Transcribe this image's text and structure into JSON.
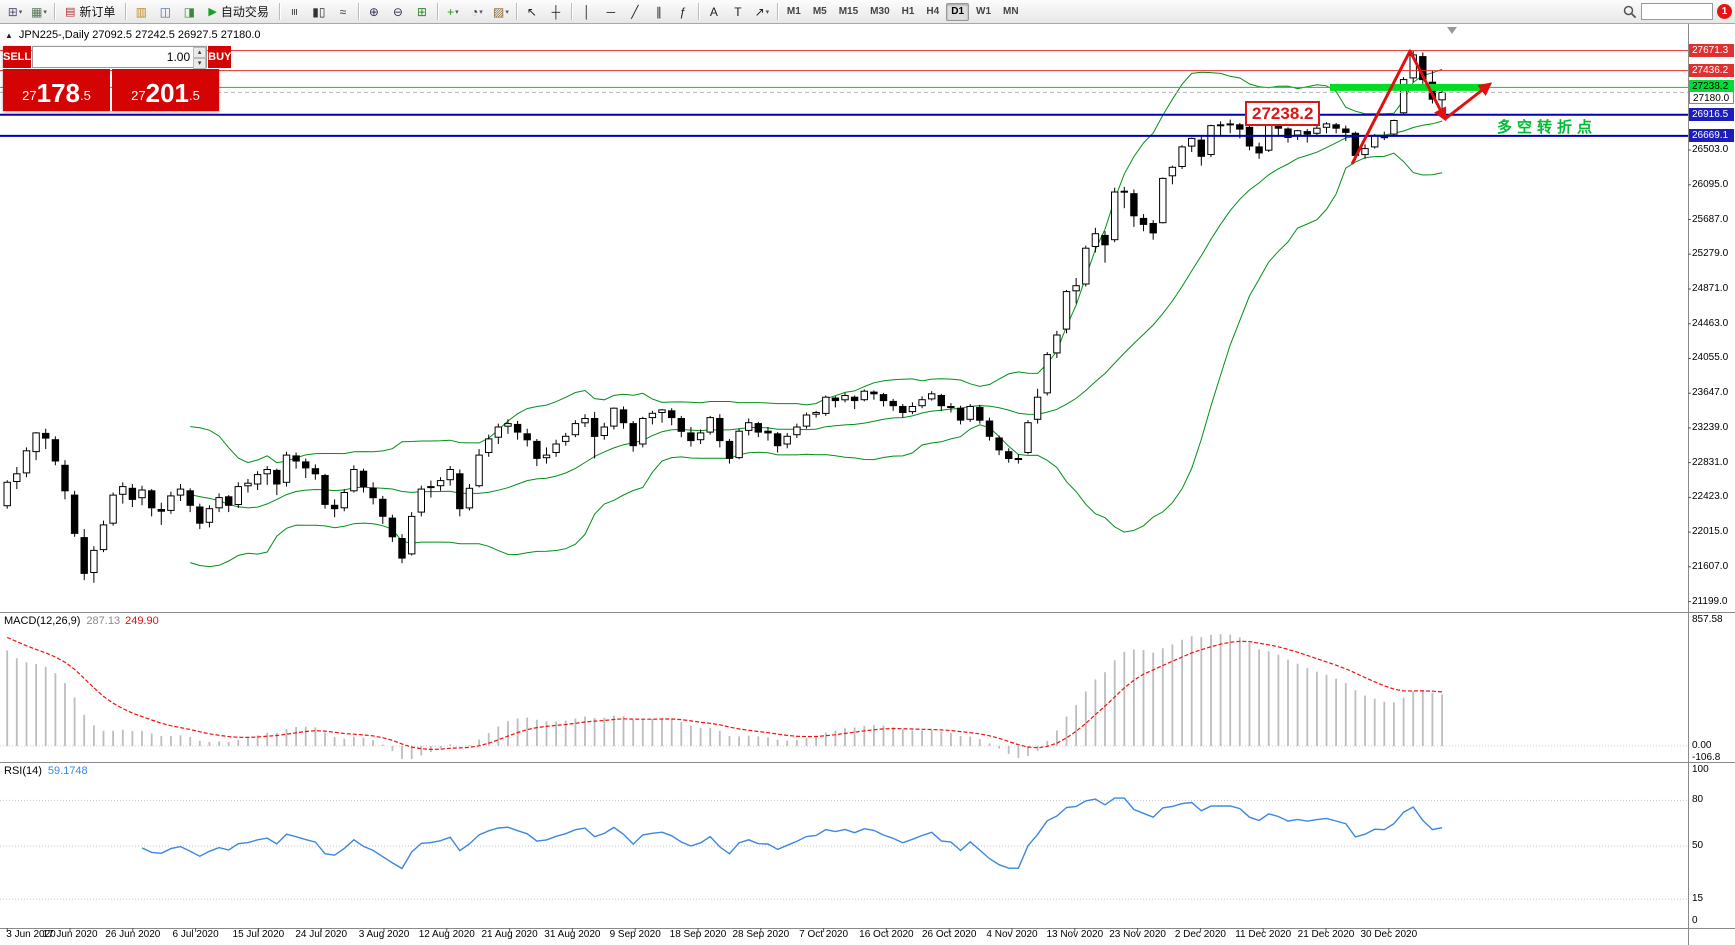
{
  "toolbar": {
    "search_placeholder": "",
    "notification_badge": "1",
    "caret_glyph": "▾",
    "timeframes": [
      "M1",
      "M5",
      "M15",
      "M30",
      "H1",
      "H4",
      "D1",
      "W1",
      "MN"
    ],
    "active_timeframe": "D1",
    "items": [
      {
        "t": "icon",
        "name": "new-chart-icon",
        "g": "⊞",
        "c": "#555577",
        "caret": true
      },
      {
        "t": "icon",
        "name": "profiles-icon",
        "g": "▦",
        "c": "#557755",
        "caret": true
      },
      {
        "t": "sep"
      },
      {
        "t": "button",
        "name": "new-order-button",
        "g": "▤",
        "c": "#b03030",
        "label": "新订单"
      },
      {
        "t": "sep"
      },
      {
        "t": "icon",
        "name": "market-watch-icon",
        "g": "▥",
        "c": "#c08820"
      },
      {
        "t": "icon",
        "name": "data-window-icon",
        "g": "◫",
        "c": "#4466aa"
      },
      {
        "t": "icon",
        "name": "strategy-tester-icon",
        "g": "◨",
        "c": "#3a8a3a"
      },
      {
        "t": "button",
        "name": "auto-trading-button",
        "g": "▶",
        "c": "#18a018",
        "label": "自动交易"
      },
      {
        "t": "sep"
      },
      {
        "t": "icon",
        "name": "bar-chart-type-icon",
        "g": "≡",
        "c": "#333333",
        "rot": true
      },
      {
        "t": "icon",
        "name": "candlestick-chart-type-icon",
        "g": "▮▯",
        "c": "#333333"
      },
      {
        "t": "icon",
        "name": "line-chart-type-icon",
        "g": "≈",
        "c": "#333333"
      },
      {
        "t": "sep"
      },
      {
        "t": "icon",
        "name": "zoom-in-icon",
        "g": "⊕",
        "c": "#333355"
      },
      {
        "t": "icon",
        "name": "zoom-out-icon",
        "g": "⊖",
        "c": "#333355"
      },
      {
        "t": "icon",
        "name": "tile-windows-icon",
        "g": "⊞",
        "c": "#2a8a2a"
      },
      {
        "t": "sep"
      },
      {
        "t": "icon",
        "name": "indicators-icon",
        "g": "+",
        "c": "#18a018",
        "caret": true
      },
      {
        "t": "icon",
        "name": "periods-icon",
        "g": "◔",
        "c": "#333333",
        "caret": true
      },
      {
        "t": "icon",
        "name": "templates-icon",
        "g": "▨",
        "c": "#886633",
        "caret": true
      },
      {
        "t": "sep"
      },
      {
        "t": "icon",
        "name": "cursor-icon",
        "g": "↖",
        "c": "#222222"
      },
      {
        "t": "icon",
        "name": "crosshair-icon",
        "g": "┼",
        "c": "#222222"
      },
      {
        "t": "sep"
      },
      {
        "t": "icon",
        "name": "vertical-line-icon",
        "g": "│",
        "c": "#222222"
      },
      {
        "t": "icon",
        "name": "horizontal-line-icon",
        "g": "─",
        "c": "#222222"
      },
      {
        "t": "icon",
        "name": "trendline-icon",
        "g": "╱",
        "c": "#222222"
      },
      {
        "t": "icon",
        "name": "equidistant-channel-icon",
        "g": "∥",
        "c": "#222222"
      },
      {
        "t": "icon",
        "name": "fibonacci-icon",
        "g": "ƒ",
        "c": "#222222"
      },
      {
        "t": "sep"
      },
      {
        "t": "icon",
        "name": "text-icon",
        "g": "A",
        "c": "#222222"
      },
      {
        "t": "icon",
        "name": "label-icon",
        "g": "T",
        "c": "#222222"
      },
      {
        "t": "icon",
        "name": "arrows-icon",
        "g": "↗",
        "c": "#222222",
        "caret": true
      },
      {
        "t": "sep"
      }
    ]
  },
  "chart": {
    "title": "JPN225-,Daily 27092.5 27242.5 26927.5 27180.0",
    "collapse_icon": "▲"
  },
  "trade_panel": {
    "sell_label": "SELL",
    "buy_label": "BUY",
    "volume": "1.00",
    "spin_up": "▴",
    "spin_down": "▾",
    "sell_price": "27178.5",
    "buy_price": "27201.5"
  },
  "annotations": {
    "pivot_price_label": "27238.2",
    "pivot_note": "多空转折点"
  },
  "chart_data": {
    "type": "candlestick",
    "symbol": "JPN225-",
    "timeframe": "Daily",
    "current_ohlc": {
      "open": 27092.5,
      "high": 27242.5,
      "low": 26927.5,
      "close": 27180.0
    },
    "ylim": [
      21100,
      27960
    ],
    "y_ticks": [
      "26503.0",
      "26095.0",
      "25687.0",
      "25279.0",
      "24871.0",
      "24463.0",
      "24055.0",
      "23647.0",
      "23239.0",
      "22831.0",
      "22423.0",
      "22015.0",
      "21607.0",
      "21199.0"
    ],
    "x_labels": [
      "3 Jun 2020",
      "17 Jun 2020",
      "26 Jun 2020",
      "6 Jul 2020",
      "15 Jul 2020",
      "24 Jul 2020",
      "3 Aug 2020",
      "12 Aug 2020",
      "21 Aug 2020",
      "31 Aug 2020",
      "9 Sep 2020",
      "18 Sep 2020",
      "28 Sep 2020",
      "7 Oct 2020",
      "16 Oct 2020",
      "26 Oct 2020",
      "4 Nov 2020",
      "13 Nov 2020",
      "23 Nov 2020",
      "2 Dec 2020",
      "11 Dec 2020",
      "21 Dec 2020",
      "30 Dec 2020"
    ],
    "overlays": {
      "bollinger_bands": {
        "period": 20,
        "deviation": 2,
        "color": "#009018"
      },
      "green_zone_price": 27238.2,
      "horizontal_levels": [
        {
          "label": "27671.3",
          "price": 27671.3,
          "style": "red",
          "bg": "#e03030",
          "fg": "#ffffff",
          "dy": 0
        },
        {
          "label": "27436.2",
          "price": 27436.2,
          "style": "red",
          "bg": "#e03030",
          "fg": "#ffffff",
          "dy": 0
        },
        {
          "label": "27238.2",
          "price": 27238.2,
          "style": "green",
          "bg": "#00dd32",
          "fg": "#000000",
          "dy": 0
        },
        {
          "label": "27180.0",
          "price": 27180.0,
          "style": "last",
          "bg": "#ffffff",
          "fg": "#000000",
          "dy": 6
        },
        {
          "label": "26916.5",
          "price": 26916.5,
          "style": "blue",
          "bg": "#1d1dbb",
          "fg": "#ffffff",
          "dy": 0
        },
        {
          "label": "26669.1",
          "price": 26669.1,
          "style": "blue",
          "bg": "#1d1dbb",
          "fg": "#ffffff",
          "dy": 0
        }
      ]
    },
    "indicator_panes": [
      {
        "name": "MACD",
        "label": "MACD(12,26,9)",
        "value_main": "287.13",
        "value_signal": "249.90",
        "scale": [
          "857.58",
          "0.00",
          "-106.8"
        ]
      },
      {
        "name": "RSI",
        "label": "RSI(14)",
        "value": "59.1748",
        "scale": [
          "100",
          "80",
          "50",
          "15",
          "0"
        ]
      }
    ],
    "ohlc": [
      [
        22325,
        22625,
        22290,
        22600
      ],
      [
        22610,
        22780,
        22520,
        22700
      ],
      [
        22710,
        23010,
        22660,
        22970
      ],
      [
        22960,
        23190,
        22860,
        23180
      ],
      [
        23175,
        23230,
        22990,
        23120
      ],
      [
        23100,
        23140,
        22800,
        22850
      ],
      [
        22800,
        22860,
        22400,
        22500
      ],
      [
        22450,
        22500,
        21960,
        22000
      ],
      [
        21950,
        22050,
        21450,
        21530
      ],
      [
        21540,
        21850,
        21420,
        21800
      ],
      [
        21810,
        22150,
        21780,
        22100
      ],
      [
        22120,
        22480,
        22090,
        22450
      ],
      [
        22460,
        22600,
        22350,
        22550
      ],
      [
        22530,
        22580,
        22310,
        22400
      ],
      [
        22420,
        22560,
        22330,
        22510
      ],
      [
        22500,
        22520,
        22200,
        22300
      ],
      [
        22280,
        22360,
        22100,
        22260
      ],
      [
        22270,
        22490,
        22230,
        22440
      ],
      [
        22450,
        22580,
        22380,
        22520
      ],
      [
        22500,
        22530,
        22250,
        22330
      ],
      [
        22310,
        22350,
        22050,
        22120
      ],
      [
        22130,
        22330,
        22070,
        22290
      ],
      [
        22300,
        22470,
        22250,
        22420
      ],
      [
        22430,
        22450,
        22250,
        22330
      ],
      [
        22340,
        22600,
        22300,
        22550
      ],
      [
        22560,
        22640,
        22480,
        22590
      ],
      [
        22580,
        22730,
        22510,
        22690
      ],
      [
        22700,
        22790,
        22570,
        22750
      ],
      [
        22740,
        22760,
        22450,
        22580
      ],
      [
        22600,
        22960,
        22550,
        22920
      ],
      [
        22910,
        22950,
        22760,
        22850
      ],
      [
        22840,
        22880,
        22650,
        22770
      ],
      [
        22760,
        22810,
        22630,
        22700
      ],
      [
        22680,
        22700,
        22290,
        22340
      ],
      [
        22330,
        22400,
        22190,
        22290
      ],
      [
        22300,
        22520,
        22260,
        22480
      ],
      [
        22500,
        22800,
        22480,
        22750
      ],
      [
        22730,
        22760,
        22480,
        22550
      ],
      [
        22530,
        22600,
        22340,
        22420
      ],
      [
        22400,
        22440,
        22110,
        22200
      ],
      [
        22180,
        22220,
        21900,
        21960
      ],
      [
        21940,
        21990,
        21650,
        21710
      ],
      [
        21760,
        22250,
        21740,
        22200
      ],
      [
        22250,
        22560,
        22200,
        22520
      ],
      [
        22540,
        22620,
        22420,
        22550
      ],
      [
        22560,
        22660,
        22500,
        22620
      ],
      [
        22630,
        22790,
        22560,
        22750
      ],
      [
        22700,
        22750,
        22200,
        22290
      ],
      [
        22300,
        22580,
        22270,
        22530
      ],
      [
        22560,
        22990,
        22540,
        22920
      ],
      [
        22950,
        23160,
        22900,
        23110
      ],
      [
        23130,
        23290,
        23050,
        23250
      ],
      [
        23260,
        23340,
        23170,
        23290
      ],
      [
        23280,
        23320,
        23100,
        23190
      ],
      [
        23170,
        23230,
        23020,
        23100
      ],
      [
        23080,
        23110,
        22790,
        22880
      ],
      [
        22890,
        23010,
        22820,
        22920
      ],
      [
        22950,
        23100,
        22900,
        23050
      ],
      [
        23080,
        23180,
        23030,
        23140
      ],
      [
        23160,
        23330,
        23130,
        23290
      ],
      [
        23300,
        23400,
        23250,
        23350
      ],
      [
        23350,
        23425,
        22880,
        23140
      ],
      [
        23150,
        23300,
        23100,
        23250
      ],
      [
        23260,
        23480,
        23220,
        23470
      ],
      [
        23450,
        23490,
        23230,
        23300
      ],
      [
        23290,
        23320,
        22960,
        23030
      ],
      [
        23050,
        23370,
        23010,
        23350
      ],
      [
        23360,
        23440,
        23280,
        23410
      ],
      [
        23420,
        23460,
        23300,
        23450
      ],
      [
        23440,
        23470,
        23270,
        23360
      ],
      [
        23350,
        23380,
        23130,
        23200
      ],
      [
        23180,
        23250,
        23020,
        23090
      ],
      [
        23100,
        23220,
        23050,
        23180
      ],
      [
        23190,
        23380,
        23160,
        23360
      ],
      [
        23350,
        23400,
        23010,
        23090
      ],
      [
        23080,
        23110,
        22820,
        22880
      ],
      [
        22890,
        23230,
        22870,
        23200
      ],
      [
        23210,
        23350,
        23150,
        23300
      ],
      [
        23290,
        23310,
        23130,
        23190
      ],
      [
        23200,
        23250,
        23090,
        23180
      ],
      [
        23170,
        23190,
        22950,
        23030
      ],
      [
        23050,
        23180,
        23000,
        23140
      ],
      [
        23160,
        23290,
        23120,
        23250
      ],
      [
        23260,
        23420,
        23230,
        23390
      ],
      [
        23400,
        23440,
        23360,
        23420
      ],
      [
        23410,
        23620,
        23380,
        23600
      ],
      [
        23590,
        23610,
        23480,
        23560
      ],
      [
        23570,
        23650,
        23540,
        23620
      ],
      [
        23600,
        23620,
        23460,
        23560
      ],
      [
        23570,
        23690,
        23550,
        23670
      ],
      [
        23660,
        23680,
        23570,
        23640
      ],
      [
        23630,
        23650,
        23490,
        23560
      ],
      [
        23550,
        23580,
        23440,
        23500
      ],
      [
        23490,
        23520,
        23360,
        23420
      ],
      [
        23430,
        23540,
        23400,
        23490
      ],
      [
        23500,
        23610,
        23470,
        23570
      ],
      [
        23580,
        23670,
        23560,
        23640
      ],
      [
        23620,
        23640,
        23440,
        23500
      ],
      [
        23490,
        23530,
        23420,
        23480
      ],
      [
        23470,
        23500,
        23280,
        23330
      ],
      [
        23340,
        23520,
        23310,
        23490
      ],
      [
        23480,
        23510,
        23290,
        23330
      ],
      [
        23320,
        23360,
        23090,
        23140
      ],
      [
        23120,
        23150,
        22920,
        22980
      ],
      [
        22960,
        23000,
        22830,
        22880
      ],
      [
        22870,
        22930,
        22820,
        22880
      ],
      [
        22950,
        23330,
        22930,
        23300
      ],
      [
        23340,
        23700,
        23290,
        23600
      ],
      [
        23650,
        24130,
        23620,
        24100
      ],
      [
        24120,
        24380,
        24060,
        24330
      ],
      [
        24400,
        24860,
        24350,
        24840
      ],
      [
        24850,
        25000,
        24700,
        24910
      ],
      [
        24930,
        25380,
        24900,
        25350
      ],
      [
        25370,
        25590,
        25300,
        25520
      ],
      [
        25500,
        25550,
        25180,
        25390
      ],
      [
        25450,
        26060,
        25420,
        26010
      ],
      [
        26020,
        26070,
        25820,
        26010
      ],
      [
        25990,
        26040,
        25600,
        25730
      ],
      [
        25700,
        25750,
        25550,
        25630
      ],
      [
        25640,
        25680,
        25450,
        25530
      ],
      [
        25650,
        26180,
        25640,
        26170
      ],
      [
        26200,
        26320,
        26100,
        26300
      ],
      [
        26310,
        26560,
        26280,
        26540
      ],
      [
        26550,
        26650,
        26480,
        26640
      ],
      [
        26620,
        26660,
        26320,
        26430
      ],
      [
        26450,
        26800,
        26420,
        26790
      ],
      [
        26800,
        26840,
        26680,
        26800
      ],
      [
        26810,
        26860,
        26700,
        26810
      ],
      [
        26800,
        26820,
        26640,
        26750
      ],
      [
        26770,
        26800,
        26500,
        26550
      ],
      [
        26540,
        26590,
        26400,
        26470
      ],
      [
        26500,
        26820,
        26480,
        26820
      ],
      [
        26830,
        26850,
        26680,
        26760
      ],
      [
        26750,
        26770,
        26590,
        26650
      ],
      [
        26680,
        26740,
        26620,
        26730
      ],
      [
        26720,
        26750,
        26590,
        26690
      ],
      [
        26700,
        26790,
        26660,
        26760
      ],
      [
        26770,
        26830,
        26700,
        26810
      ],
      [
        26800,
        26820,
        26700,
        26760
      ],
      [
        26750,
        26790,
        26610,
        26710
      ],
      [
        26700,
        26720,
        26380,
        26440
      ],
      [
        26450,
        26570,
        26400,
        26520
      ],
      [
        26540,
        26690,
        26520,
        26670
      ],
      [
        26660,
        26720,
        26620,
        26660
      ],
      [
        26690,
        26860,
        26660,
        26850
      ],
      [
        26940,
        27360,
        26920,
        27330
      ],
      [
        27350,
        27671,
        27300,
        27620
      ],
      [
        27600,
        27650,
        27280,
        27330
      ],
      [
        27300,
        27440,
        27050,
        27100
      ],
      [
        27092.5,
        27242.5,
        26927.5,
        27180
      ]
    ]
  }
}
